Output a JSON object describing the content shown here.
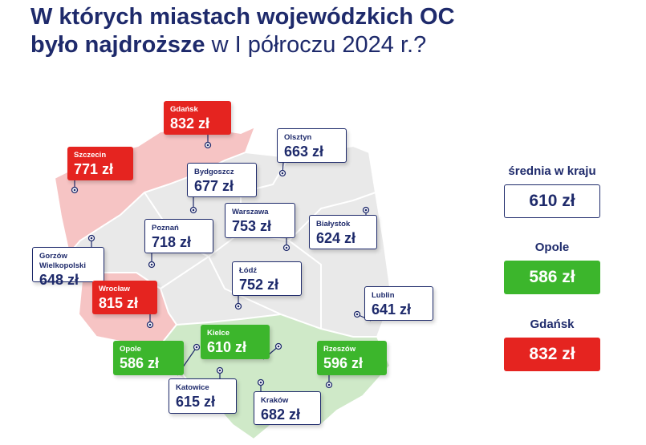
{
  "header": {
    "title_bold": "W których miastach wojewódzkich OC",
    "title_line2_bold": "było najdroższe",
    "title_line2_light": "w I półroczu 2024 r.?"
  },
  "cities": [
    {
      "name": "Gdańsk",
      "price": "832 zł",
      "color": "#e52420"
    },
    {
      "name": "Szczecin",
      "price": "771 zł",
      "color": "#e52420"
    },
    {
      "name": "Olsztyn",
      "price": "663 zł",
      "color": "#ffffff"
    },
    {
      "name": "Bydgoszcz",
      "price": "677 zł",
      "color": "#ffffff"
    },
    {
      "name": "Warszawa",
      "price": "753 zł",
      "color": "#ffffff"
    },
    {
      "name": "Białystok",
      "price": "624 zł",
      "color": "#ffffff"
    },
    {
      "name": "Poznań",
      "price": "718 zł",
      "color": "#ffffff"
    },
    {
      "name": "Gorzów Wielkopolski",
      "price": "648 zł",
      "color": "#ffffff"
    },
    {
      "name": "Łódź",
      "price": "752 zł",
      "color": "#ffffff"
    },
    {
      "name": "Wrocław",
      "price": "815 zł",
      "color": "#e52420"
    },
    {
      "name": "Lublin",
      "price": "641 zł",
      "color": "#ffffff"
    },
    {
      "name": "Kielce",
      "price": "610 zł",
      "color": "#3cb62c"
    },
    {
      "name": "Opole",
      "price": "586 zł",
      "color": "#3cb62c"
    },
    {
      "name": "Rzeszów",
      "price": "596 zł",
      "color": "#3cb62c"
    },
    {
      "name": "Katowice",
      "price": "615 zł",
      "color": "#ffffff"
    },
    {
      "name": "Kraków",
      "price": "682 zł",
      "color": "#ffffff"
    }
  ],
  "summary": [
    {
      "label": "średnia w kraju",
      "price": "610 zł",
      "color": "#ffffff"
    },
    {
      "label": "Opole",
      "price": "586 zł",
      "color": "#3cb62c"
    },
    {
      "label": "Gdańsk",
      "price": "832 zł",
      "color": "#e52420"
    }
  ]
}
